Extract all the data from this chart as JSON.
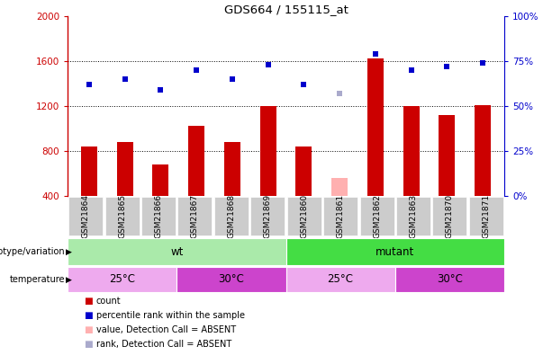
{
  "title": "GDS664 / 155115_at",
  "samples": [
    "GSM21864",
    "GSM21865",
    "GSM21866",
    "GSM21867",
    "GSM21868",
    "GSM21869",
    "GSM21860",
    "GSM21861",
    "GSM21862",
    "GSM21863",
    "GSM21870",
    "GSM21871"
  ],
  "counts": [
    840,
    880,
    680,
    1020,
    880,
    1200,
    840,
    560,
    1620,
    1200,
    1120,
    1210
  ],
  "ranks": [
    62,
    65,
    59,
    70,
    65,
    73,
    62,
    57,
    79,
    70,
    72,
    74
  ],
  "absent_count_idx": 7,
  "absent_rank_idx": 7,
  "ylim_left": [
    400,
    2000
  ],
  "ylim_right": [
    0,
    100
  ],
  "yticks_left": [
    400,
    800,
    1200,
    1600,
    2000
  ],
  "yticks_right": [
    0,
    25,
    50,
    75,
    100
  ],
  "bar_color": "#cc0000",
  "bar_color_absent": "#ffb0b0",
  "dot_color": "#0000cc",
  "dot_color_absent": "#aaaacc",
  "grid_color": "#000000",
  "left_axis_color": "#cc0000",
  "right_axis_color": "#0000cc",
  "genotype_wt_color": "#aaeaaa",
  "genotype_mutant_color": "#44dd44",
  "temp_25_color": "#eeaaee",
  "temp_30_color": "#cc44cc",
  "xlabel_bg": "#cccccc",
  "temp_groups": [
    [
      0,
      3,
      "#eeaaee",
      "25°C"
    ],
    [
      3,
      6,
      "#cc44cc",
      "30°C"
    ],
    [
      6,
      9,
      "#eeaaee",
      "25°C"
    ],
    [
      9,
      12,
      "#cc44cc",
      "30°C"
    ]
  ]
}
